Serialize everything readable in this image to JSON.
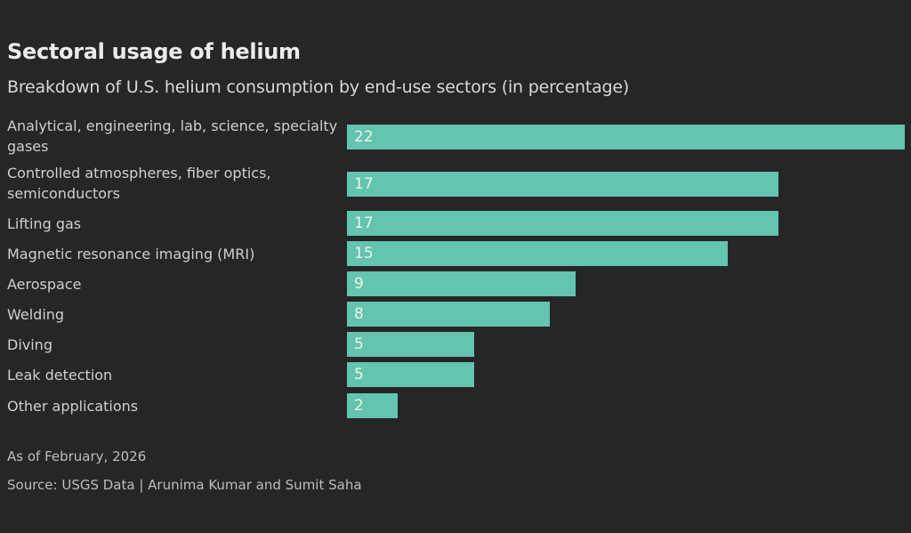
{
  "header": {
    "title": "Sectoral usage of helium",
    "subtitle": "Breakdown of U.S. helium consumption by end-use sectors (in percentage)"
  },
  "footer": {
    "note": "As of February, 2026",
    "source": "Source: USGS Data | Arunima Kumar and Sumit Saha"
  },
  "colors": {
    "bar": "#63c4b0",
    "background": "#262626"
  },
  "chart_data": {
    "type": "bar",
    "orientation": "horizontal",
    "title": "Sectoral usage of helium",
    "subtitle": "Breakdown of U.S. helium consumption by end-use sectors (in percentage)",
    "xlabel": "",
    "ylabel": "",
    "categories": [
      "Analytical, engineering, lab, science, specialty gases",
      "Controlled atmospheres, fiber optics, semiconductors",
      "Lifting gas",
      "Magnetic resonance imaging (MRI)",
      "Aerospace",
      "Welding",
      "Diving",
      "Leak detection",
      "Other applications"
    ],
    "values": [
      22,
      17,
      17,
      15,
      9,
      8,
      5,
      5,
      2
    ],
    "value_labels": [
      "22",
      "17",
      "17",
      "15",
      "9",
      "8",
      "5",
      "5",
      "2"
    ],
    "xlim": [
      0,
      22
    ],
    "grid": false,
    "legend": "none",
    "data_labels": "inside-left"
  }
}
